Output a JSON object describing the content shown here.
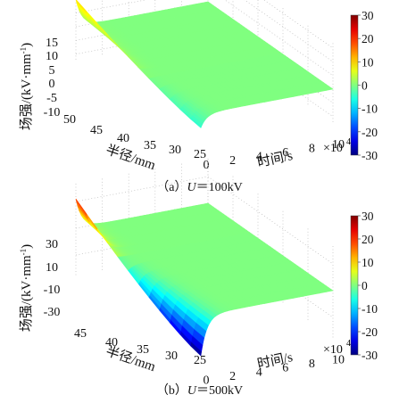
{
  "chart_data": [
    {
      "type": "surface",
      "caption_prefix": "（a）",
      "caption_var": "U",
      "caption_eq": "＝",
      "caption_value": "100kV",
      "zlabel": "场强/(kV·mm",
      "zlabel_sup": "-1",
      "zlabel_end": ")",
      "ylabel": "半径/mm",
      "xlabel": "时间/s",
      "x_multiplier": "×10",
      "x_multiplier_sup": "4",
      "x_ticks": [
        "0",
        "2",
        "4",
        "6",
        "8",
        "10"
      ],
      "y_ticks": [
        "50",
        "45",
        "40",
        "35",
        "30",
        "25"
      ],
      "z_ticks": [
        "15",
        "10",
        "5",
        "0",
        "-5",
        "-10"
      ],
      "colorbar_ticks": [
        "30",
        "20",
        "10",
        "0",
        "-10",
        "-20",
        "-30"
      ],
      "xlim": [
        0,
        10
      ],
      "ylim": [
        25,
        50
      ],
      "zlim": [
        -12,
        17
      ],
      "color_range": [
        -30,
        30
      ],
      "surface": {
        "radius_mm": [
          25,
          50
        ],
        "field_at_t0_kV_per_mm": [
          -5,
          10
        ],
        "steady_field_kV_per_mm": 0
      }
    },
    {
      "type": "surface",
      "caption_prefix": "（b）",
      "caption_var": "U",
      "caption_eq": "＝",
      "caption_value": "500kV",
      "zlabel": "场强/(kV·mm",
      "zlabel_sup": "-1",
      "zlabel_end": ")",
      "ylabel": "半径/mm",
      "xlabel": "时间/s",
      "x_multiplier": "×10",
      "x_multiplier_sup": "4",
      "x_ticks": [
        "0",
        "2",
        "4",
        "6",
        "8",
        "10"
      ],
      "y_ticks": [
        "45",
        "40",
        "35",
        "30",
        "25"
      ],
      "z_ticks": [
        "30",
        "10",
        "-10",
        "-30"
      ],
      "colorbar_ticks": [
        "30",
        "20",
        "10",
        "0",
        "-10",
        "-20",
        "-30"
      ],
      "xlim": [
        0,
        10
      ],
      "ylim": [
        25,
        50
      ],
      "zlim": [
        -35,
        35
      ],
      "color_range": [
        -30,
        30
      ],
      "surface": {
        "radius_mm": [
          25,
          50
        ],
        "field_at_t0_kV_per_mm": [
          -30,
          22
        ],
        "steady_field_kV_per_mm": 0
      }
    }
  ]
}
